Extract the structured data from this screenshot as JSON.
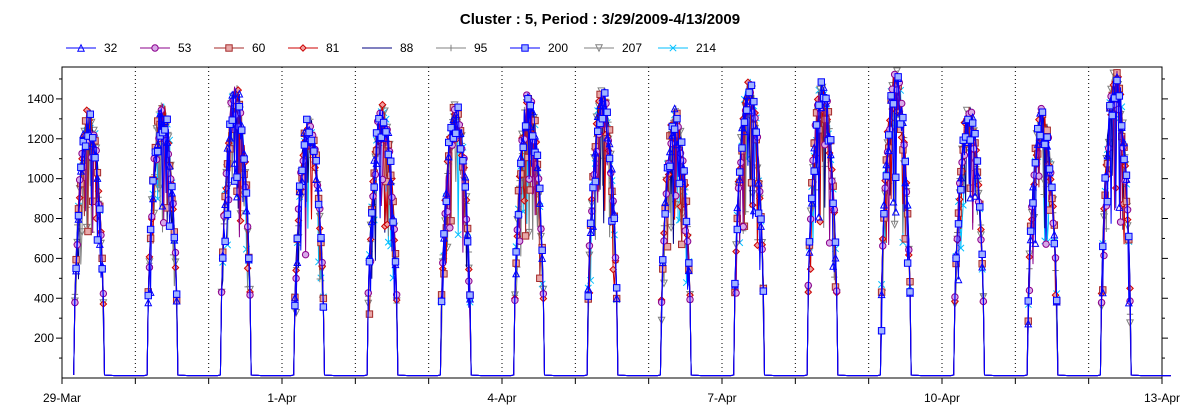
{
  "chart_data": {
    "type": "line",
    "title": "Cluster : 5, Period : 3/29/2009-4/13/2009",
    "xlabel": "",
    "ylabel": "",
    "x_range": [
      "2009-03-29",
      "2009-04-13"
    ],
    "x_tick_labels": [
      "29-Mar",
      "1-Apr",
      "4-Apr",
      "7-Apr",
      "10-Apr",
      "13-Apr"
    ],
    "ylim": [
      0,
      1560
    ],
    "y_ticks": [
      200,
      400,
      600,
      800,
      1000,
      1200,
      1400
    ],
    "grid": "dotted vertical lines at day boundaries",
    "legend_position": "top",
    "series": [
      {
        "name": "32",
        "color": "#0000ff",
        "marker": "triangle-up"
      },
      {
        "name": "53",
        "color": "#8b008b",
        "marker": "circle"
      },
      {
        "name": "60",
        "color": "#a52a2a",
        "marker": "square"
      },
      {
        "name": "81",
        "color": "#cc0000",
        "marker": "diamond"
      },
      {
        "name": "88",
        "color": "#000080",
        "marker": "none"
      },
      {
        "name": "95",
        "color": "#808080",
        "marker": "plus"
      },
      {
        "name": "200",
        "color": "#0000ff",
        "marker": "square"
      },
      {
        "name": "207",
        "color": "#808080",
        "marker": "triangle-down"
      },
      {
        "name": "214",
        "color": "#00bfff",
        "marker": "x"
      }
    ],
    "daily_profile": [
      {
        "day": "2009-03-29",
        "peak": 1370
      },
      {
        "day": "2009-03-30",
        "peak": 1400
      },
      {
        "day": "2009-03-31",
        "peak": 1480
      },
      {
        "day": "2009-04-01",
        "peak": 1320
      },
      {
        "day": "2009-04-02",
        "peak": 1380
      },
      {
        "day": "2009-04-03",
        "peak": 1390
      },
      {
        "day": "2009-04-04",
        "peak": 1450
      },
      {
        "day": "2009-04-05",
        "peak": 1460
      },
      {
        "day": "2009-04-06",
        "peak": 1360
      },
      {
        "day": "2009-04-07",
        "peak": 1530
      },
      {
        "day": "2009-04-08",
        "peak": 1500
      },
      {
        "day": "2009-04-09",
        "peak": 1550
      },
      {
        "day": "2009-04-10",
        "peak": 1370
      },
      {
        "day": "2009-04-11",
        "peak": 1370
      },
      {
        "day": "2009-04-12",
        "peak": 1560
      }
    ]
  }
}
